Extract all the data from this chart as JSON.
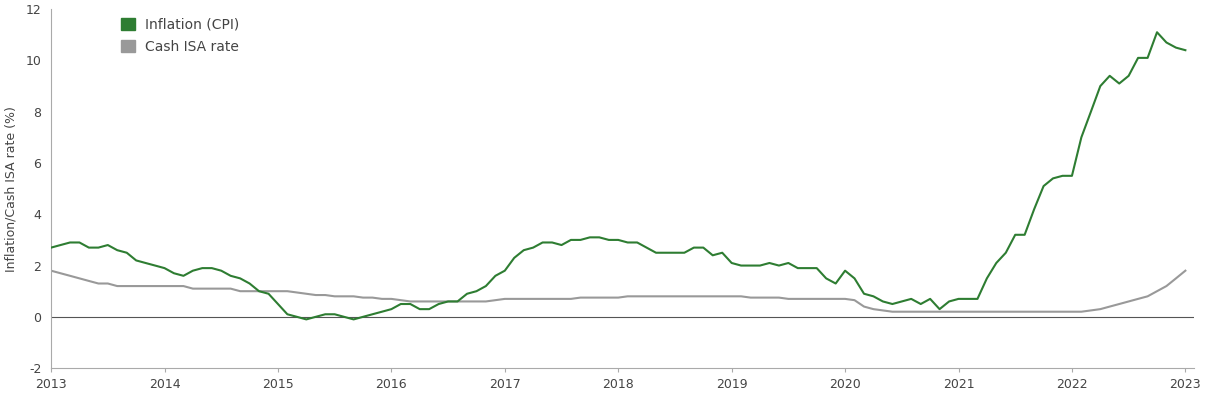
{
  "ylabel": "Inflation/Cash ISA rate (%)",
  "ylim": [
    -2,
    12
  ],
  "yticks": [
    -2,
    0,
    2,
    4,
    6,
    8,
    10,
    12
  ],
  "xlim": [
    2013.0,
    2023.08
  ],
  "xticks": [
    2013,
    2014,
    2015,
    2016,
    2017,
    2018,
    2019,
    2020,
    2021,
    2022,
    2023
  ],
  "line_color_cpi": "#2e7d32",
  "line_color_isa": "#999999",
  "zero_line_color": "#555555",
  "spine_color": "#aaaaaa",
  "background_color": "#ffffff",
  "legend_labels": [
    "Inflation (CPI)",
    "Cash ISA rate"
  ],
  "tick_label_color": "#444444",
  "cpi_x": [
    2013.0,
    2013.083,
    2013.167,
    2013.25,
    2013.333,
    2013.417,
    2013.5,
    2013.583,
    2013.667,
    2013.75,
    2013.833,
    2013.917,
    2014.0,
    2014.083,
    2014.167,
    2014.25,
    2014.333,
    2014.417,
    2014.5,
    2014.583,
    2014.667,
    2014.75,
    2014.833,
    2014.917,
    2015.0,
    2015.083,
    2015.167,
    2015.25,
    2015.333,
    2015.417,
    2015.5,
    2015.583,
    2015.667,
    2015.75,
    2015.833,
    2015.917,
    2016.0,
    2016.083,
    2016.167,
    2016.25,
    2016.333,
    2016.417,
    2016.5,
    2016.583,
    2016.667,
    2016.75,
    2016.833,
    2016.917,
    2017.0,
    2017.083,
    2017.167,
    2017.25,
    2017.333,
    2017.417,
    2017.5,
    2017.583,
    2017.667,
    2017.75,
    2017.833,
    2017.917,
    2018.0,
    2018.083,
    2018.167,
    2018.25,
    2018.333,
    2018.417,
    2018.5,
    2018.583,
    2018.667,
    2018.75,
    2018.833,
    2018.917,
    2019.0,
    2019.083,
    2019.167,
    2019.25,
    2019.333,
    2019.417,
    2019.5,
    2019.583,
    2019.667,
    2019.75,
    2019.833,
    2019.917,
    2020.0,
    2020.083,
    2020.167,
    2020.25,
    2020.333,
    2020.417,
    2020.5,
    2020.583,
    2020.667,
    2020.75,
    2020.833,
    2020.917,
    2021.0,
    2021.083,
    2021.167,
    2021.25,
    2021.333,
    2021.417,
    2021.5,
    2021.583,
    2021.667,
    2021.75,
    2021.833,
    2021.917,
    2022.0,
    2022.083,
    2022.167,
    2022.25,
    2022.333,
    2022.417,
    2022.5,
    2022.583,
    2022.667,
    2022.75,
    2022.833,
    2022.917,
    2023.0
  ],
  "cpi_y": [
    2.7,
    2.8,
    2.9,
    2.9,
    2.7,
    2.7,
    2.8,
    2.6,
    2.5,
    2.2,
    2.1,
    2.0,
    1.9,
    1.7,
    1.6,
    1.8,
    1.9,
    1.9,
    1.8,
    1.6,
    1.5,
    1.3,
    1.0,
    0.9,
    0.5,
    0.1,
    0.0,
    -0.1,
    0.0,
    0.1,
    0.1,
    0.0,
    -0.1,
    0.0,
    0.1,
    0.2,
    0.3,
    0.5,
    0.5,
    0.3,
    0.3,
    0.5,
    0.6,
    0.6,
    0.9,
    1.0,
    1.2,
    1.6,
    1.8,
    2.3,
    2.6,
    2.7,
    2.9,
    2.9,
    2.8,
    3.0,
    3.0,
    3.1,
    3.1,
    3.0,
    3.0,
    2.9,
    2.9,
    2.7,
    2.5,
    2.5,
    2.5,
    2.5,
    2.7,
    2.7,
    2.4,
    2.5,
    2.1,
    2.0,
    2.0,
    2.0,
    2.1,
    2.0,
    2.1,
    1.9,
    1.9,
    1.9,
    1.5,
    1.3,
    1.8,
    1.5,
    0.9,
    0.8,
    0.6,
    0.5,
    0.6,
    0.7,
    0.5,
    0.7,
    0.3,
    0.6,
    0.7,
    0.7,
    0.7,
    1.5,
    2.1,
    2.5,
    3.2,
    3.2,
    4.2,
    5.1,
    5.4,
    5.5,
    5.5,
    7.0,
    8.0,
    9.0,
    9.4,
    9.1,
    9.4,
    10.1,
    10.1,
    11.1,
    10.7,
    10.5,
    10.4
  ],
  "isa_x": [
    2013.0,
    2013.083,
    2013.167,
    2013.25,
    2013.333,
    2013.417,
    2013.5,
    2013.583,
    2013.667,
    2013.75,
    2013.833,
    2013.917,
    2014.0,
    2014.083,
    2014.167,
    2014.25,
    2014.333,
    2014.417,
    2014.5,
    2014.583,
    2014.667,
    2014.75,
    2014.833,
    2014.917,
    2015.0,
    2015.083,
    2015.167,
    2015.25,
    2015.333,
    2015.417,
    2015.5,
    2015.583,
    2015.667,
    2015.75,
    2015.833,
    2015.917,
    2016.0,
    2016.083,
    2016.167,
    2016.25,
    2016.333,
    2016.417,
    2016.5,
    2016.583,
    2016.667,
    2016.75,
    2016.833,
    2016.917,
    2017.0,
    2017.083,
    2017.167,
    2017.25,
    2017.333,
    2017.417,
    2017.5,
    2017.583,
    2017.667,
    2017.75,
    2017.833,
    2017.917,
    2018.0,
    2018.083,
    2018.167,
    2018.25,
    2018.333,
    2018.417,
    2018.5,
    2018.583,
    2018.667,
    2018.75,
    2018.833,
    2018.917,
    2019.0,
    2019.083,
    2019.167,
    2019.25,
    2019.333,
    2019.417,
    2019.5,
    2019.583,
    2019.667,
    2019.75,
    2019.833,
    2019.917,
    2020.0,
    2020.083,
    2020.167,
    2020.25,
    2020.333,
    2020.417,
    2020.5,
    2020.583,
    2020.667,
    2020.75,
    2020.833,
    2020.917,
    2021.0,
    2021.083,
    2021.167,
    2021.25,
    2021.333,
    2021.417,
    2021.5,
    2021.583,
    2021.667,
    2021.75,
    2021.833,
    2021.917,
    2022.0,
    2022.083,
    2022.167,
    2022.25,
    2022.333,
    2022.417,
    2022.5,
    2022.583,
    2022.667,
    2022.75,
    2022.833,
    2022.917,
    2023.0
  ],
  "isa_y": [
    1.8,
    1.7,
    1.6,
    1.5,
    1.4,
    1.3,
    1.3,
    1.2,
    1.2,
    1.2,
    1.2,
    1.2,
    1.2,
    1.2,
    1.2,
    1.1,
    1.1,
    1.1,
    1.1,
    1.1,
    1.0,
    1.0,
    1.0,
    1.0,
    1.0,
    1.0,
    0.95,
    0.9,
    0.85,
    0.85,
    0.8,
    0.8,
    0.8,
    0.75,
    0.75,
    0.7,
    0.7,
    0.65,
    0.6,
    0.6,
    0.6,
    0.6,
    0.6,
    0.6,
    0.6,
    0.6,
    0.6,
    0.65,
    0.7,
    0.7,
    0.7,
    0.7,
    0.7,
    0.7,
    0.7,
    0.7,
    0.75,
    0.75,
    0.75,
    0.75,
    0.75,
    0.8,
    0.8,
    0.8,
    0.8,
    0.8,
    0.8,
    0.8,
    0.8,
    0.8,
    0.8,
    0.8,
    0.8,
    0.8,
    0.75,
    0.75,
    0.75,
    0.75,
    0.7,
    0.7,
    0.7,
    0.7,
    0.7,
    0.7,
    0.7,
    0.65,
    0.4,
    0.3,
    0.25,
    0.2,
    0.2,
    0.2,
    0.2,
    0.2,
    0.2,
    0.2,
    0.2,
    0.2,
    0.2,
    0.2,
    0.2,
    0.2,
    0.2,
    0.2,
    0.2,
    0.2,
    0.2,
    0.2,
    0.2,
    0.2,
    0.25,
    0.3,
    0.4,
    0.5,
    0.6,
    0.7,
    0.8,
    1.0,
    1.2,
    1.5,
    1.8
  ]
}
